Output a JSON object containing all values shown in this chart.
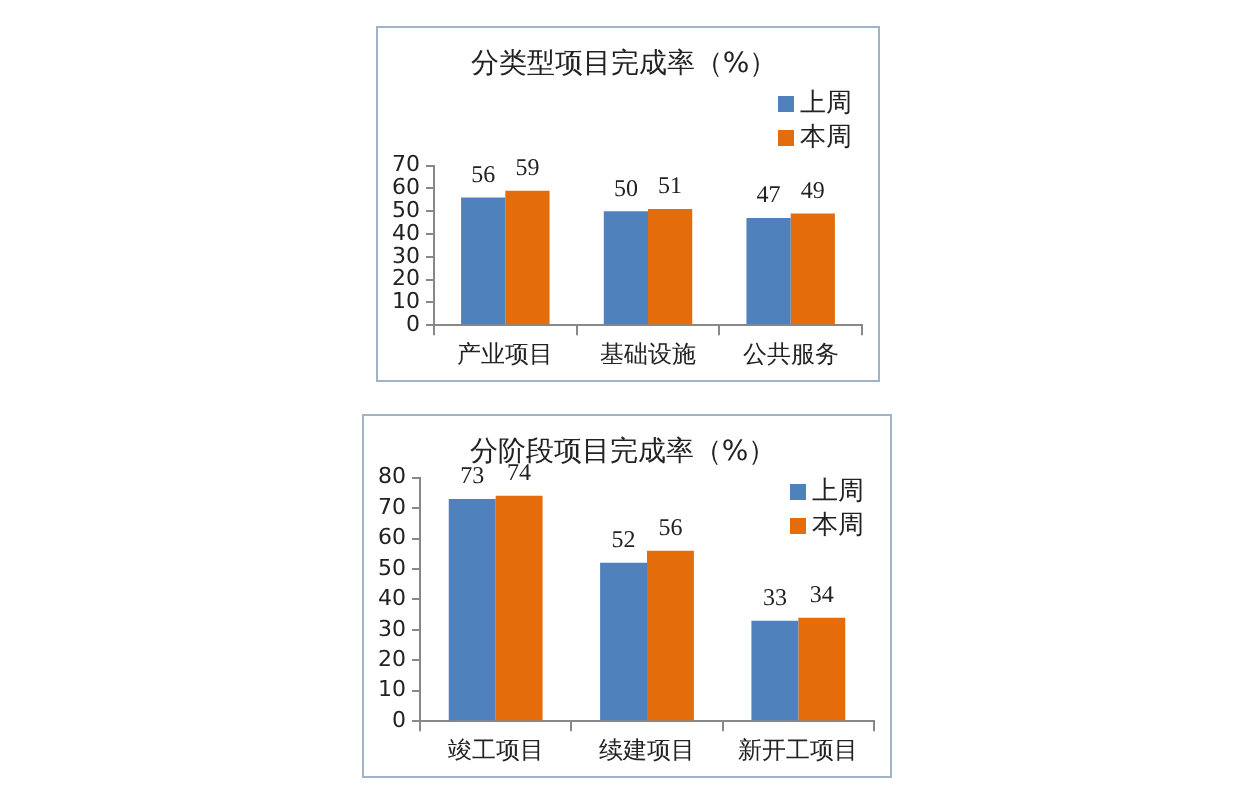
{
  "chart_data": [
    {
      "type": "bar",
      "title": "分类型项目完成率（%）",
      "categories": [
        "产业项目",
        "基础设施",
        "公共服务"
      ],
      "series": [
        {
          "name": "上周",
          "color": "#4f81bd",
          "values": [
            56,
            50,
            47
          ]
        },
        {
          "name": "本周",
          "color": "#e46c0a",
          "values": [
            59,
            51,
            49
          ]
        }
      ],
      "ylim": [
        0,
        70
      ],
      "yticks": [
        0,
        10,
        20,
        30,
        40,
        50,
        60,
        70
      ],
      "legend": "top right",
      "data_labels": true
    },
    {
      "type": "bar",
      "title": "分阶段项目完成率（%）",
      "categories": [
        "竣工项目",
        "续建项目",
        "新开工项目"
      ],
      "series": [
        {
          "name": "上周",
          "color": "#4f81bd",
          "values": [
            73,
            52,
            33
          ]
        },
        {
          "name": "本周",
          "color": "#e46c0a",
          "values": [
            74,
            56,
            34
          ]
        }
      ],
      "ylim": [
        0,
        80
      ],
      "yticks": [
        0,
        10,
        20,
        30,
        40,
        50,
        60,
        70,
        80
      ],
      "legend": "top right",
      "data_labels": true
    }
  ]
}
